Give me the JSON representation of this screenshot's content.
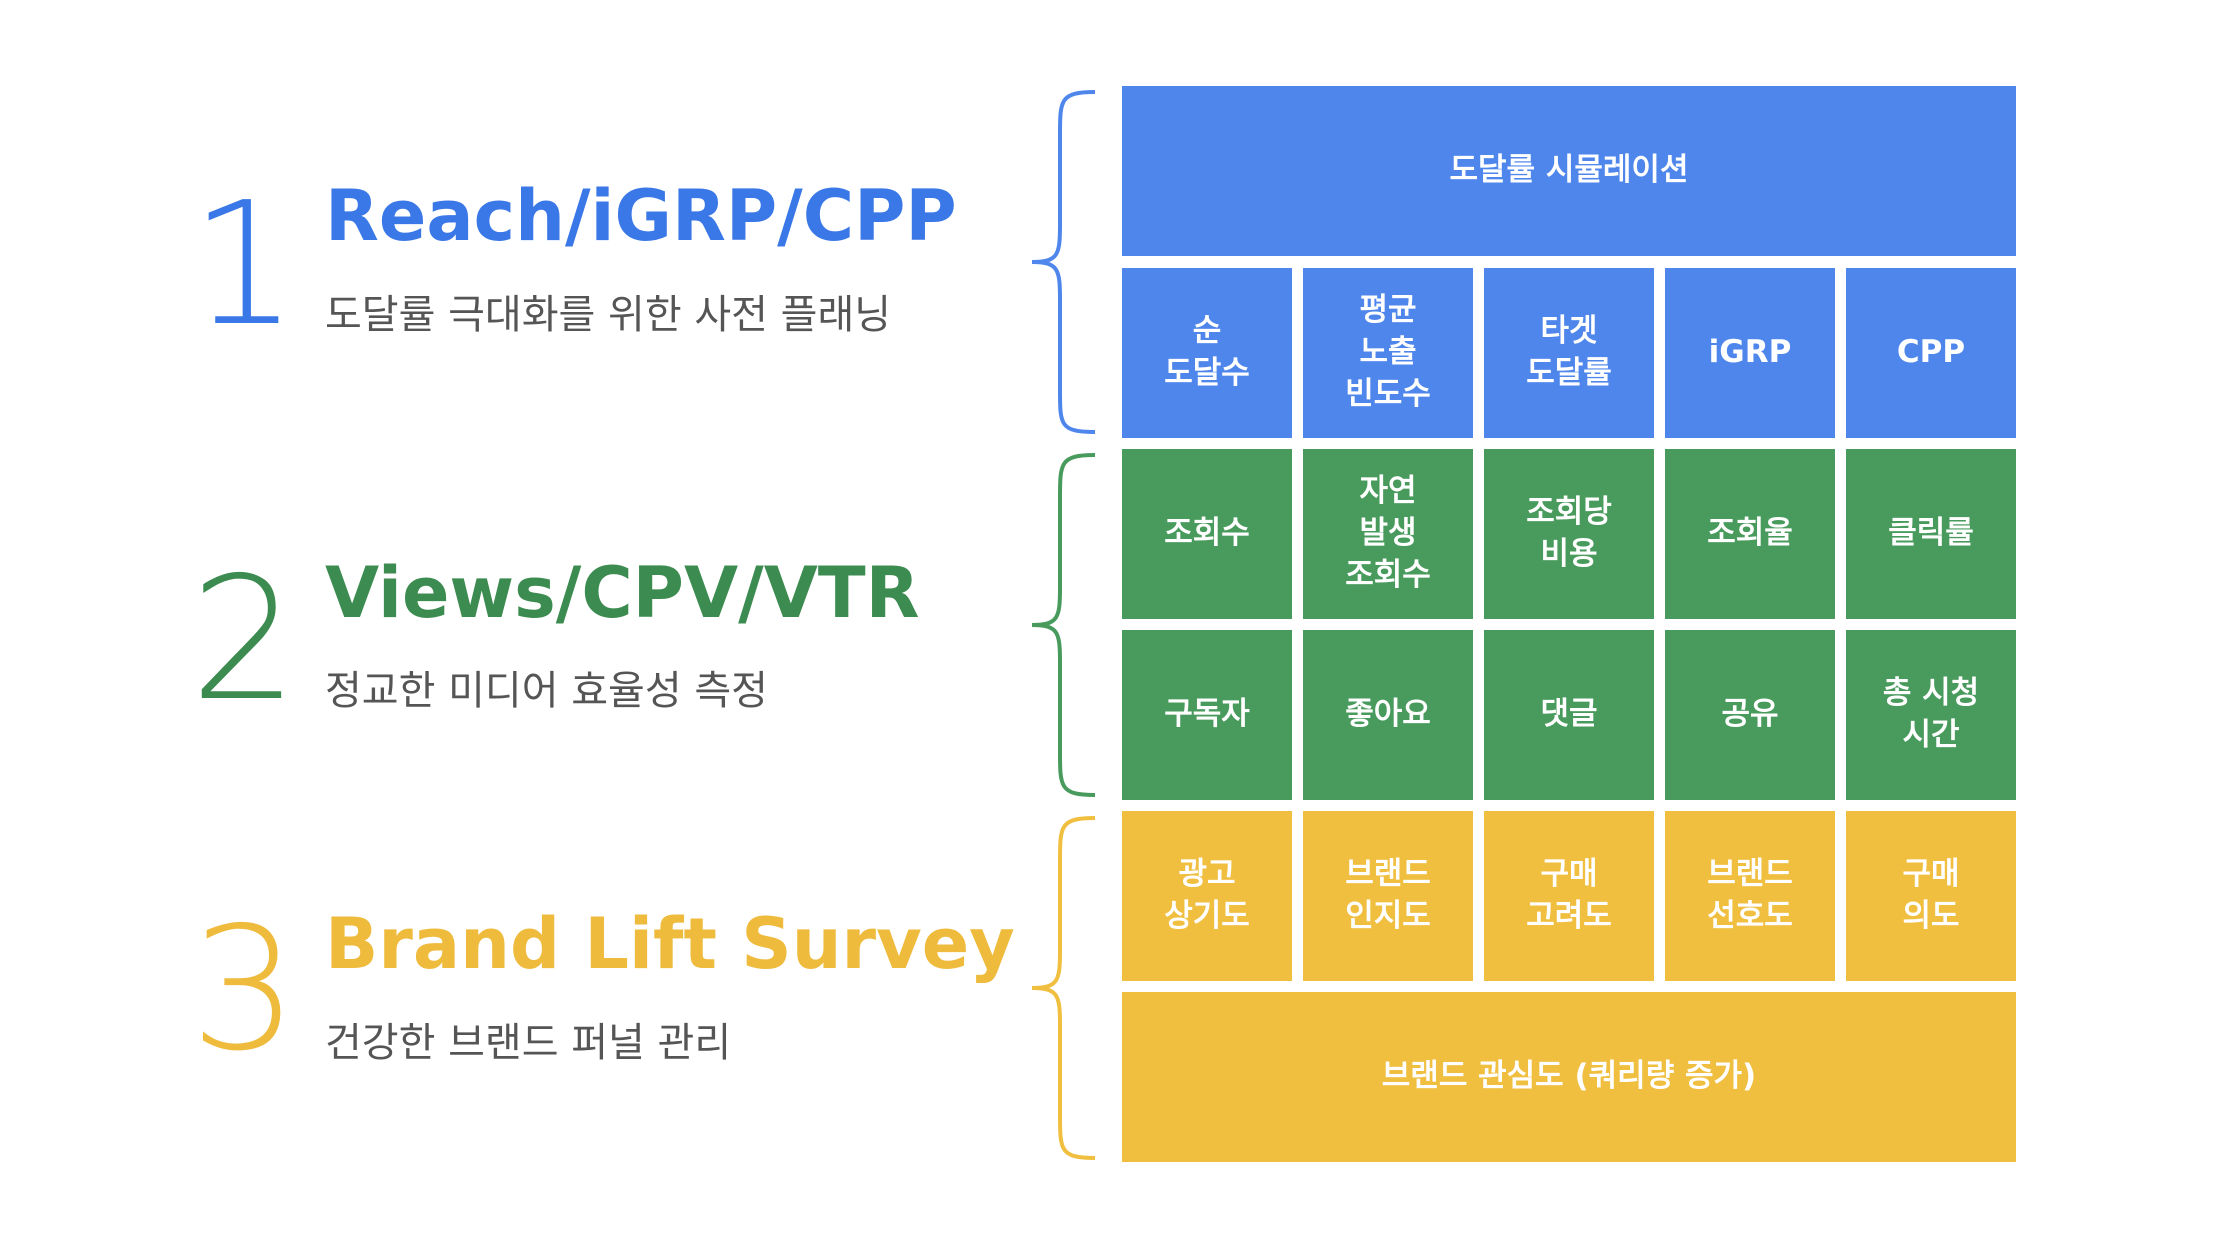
{
  "colors": {
    "blue": "#4f86ec",
    "green": "#489b5c",
    "yellow": "#f0bf40",
    "subtitle": "#555555"
  },
  "sections": [
    {
      "number": "1",
      "title": "Reach/iGRP/CPP",
      "subtitle": "도달률 극대화를 위한 사전 플래닝",
      "color": "#3b78e7"
    },
    {
      "number": "2",
      "title": "Views/CPV/VTR",
      "subtitle": "정교한 미디어 효율성 측정",
      "color": "#3c8b50"
    },
    {
      "number": "3",
      "title": "Brand Lift Survey",
      "subtitle": "건강한 브랜드 퍼널 관리",
      "color": "#eebb3c"
    }
  ],
  "grid": {
    "reach_header": "도달률 시뮬레이션",
    "reach_row": [
      "순\n도달수",
      "평균\n노출\n빈도수",
      "타겟\n도달률",
      "iGRP",
      "CPP"
    ],
    "views_row1": [
      "조회수",
      "자연\n발생\n조회수",
      "조회당\n비용",
      "조회율",
      "클릭률"
    ],
    "views_row2": [
      "구독자",
      "좋아요",
      "댓글",
      "공유",
      "총 시청\n시간"
    ],
    "brand_row": [
      "광고\n상기도",
      "브랜드\n인지도",
      "구매\n고려도",
      "브랜드\n선호도",
      "구매\n의도"
    ],
    "brand_footer": "브랜드 관심도 (쿼리량 증가)"
  }
}
